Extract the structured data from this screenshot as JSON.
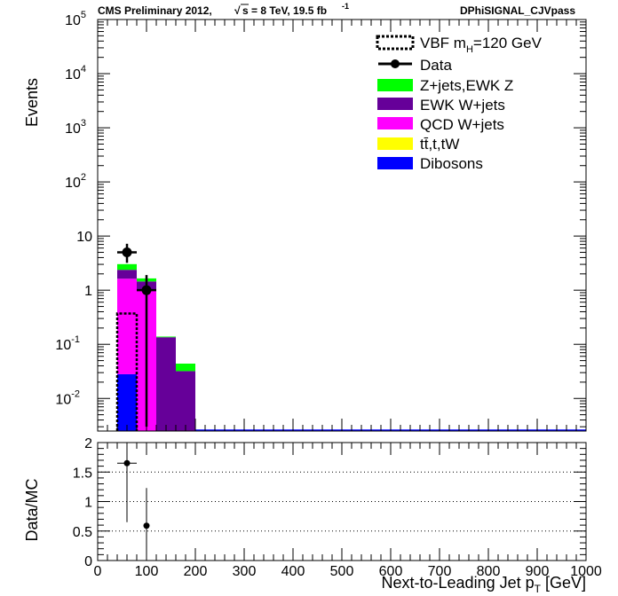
{
  "header": {
    "left_prefix": "CMS Preliminary 2012,",
    "sqrt_symbol": "√",
    "energy": "s = 8 TeV, 19.5 fb",
    "lumi_exp": "-1",
    "right": "DPhiSIGNAL_CJVpass"
  },
  "colors": {
    "zjets": "#00ff00",
    "ewkw": "#660099",
    "qcdw": "#ff00ff",
    "top": "#ffff00",
    "dibosons": "#0000ff",
    "grid": "#000000"
  },
  "chart_data": [
    {
      "type": "bar",
      "stacked": true,
      "log_y": true,
      "xlabel_main": "Next-to-Leading Jet p",
      "xlabel_sub": "T",
      "xlabel_unit": " [GeV]",
      "ylabel": "Events",
      "xlim": [
        0,
        1000
      ],
      "ylim": [
        0.0025,
        100000
      ],
      "x_ticks": [
        "0",
        "100",
        "200",
        "300",
        "400",
        "500",
        "600",
        "700",
        "800",
        "900",
        "1000"
      ],
      "y_ticks": [
        {
          "base": "10",
          "exp": "-2",
          "value": 0.01
        },
        {
          "base": "10",
          "exp": "-1",
          "value": 0.1
        },
        {
          "base": "1",
          "exp": "",
          "value": 1
        },
        {
          "base": "10",
          "exp": "",
          "value": 10
        },
        {
          "base": "10",
          "exp": "2",
          "value": 100
        },
        {
          "base": "10",
          "exp": "3",
          "value": 1000
        },
        {
          "base": "10",
          "exp": "4",
          "value": 10000
        },
        {
          "base": "10",
          "exp": "5",
          "value": 100000
        }
      ],
      "bins": [
        {
          "x0": 40,
          "x1": 80
        },
        {
          "x0": 80,
          "x1": 120
        },
        {
          "x0": 120,
          "x1": 160
        },
        {
          "x0": 160,
          "x1": 200
        }
      ],
      "series": [
        {
          "key": "dibosons",
          "name": "Dibosons",
          "values": [
            0.028,
            0,
            0,
            0
          ]
        },
        {
          "key": "top",
          "name": "tt̄,t,tW",
          "values": [
            0,
            0,
            0,
            0
          ]
        },
        {
          "key": "qcdw",
          "name": "QCD W+jets",
          "values": [
            1.6,
            1.0,
            0,
            0
          ]
        },
        {
          "key": "ewkw",
          "name": "EWK W+jets",
          "values": [
            0.75,
            0.45,
            0.135,
            0.032
          ]
        },
        {
          "key": "zjets",
          "name": "Z+jets,EWK Z",
          "values": [
            0.65,
            0.2,
            0.004,
            0.012
          ]
        }
      ],
      "signal": {
        "name": "VBF m",
        "name_sub": "H",
        "name_rest": "=120 GeV",
        "values": [
          0.37,
          0,
          0,
          0
        ]
      },
      "data": {
        "name": "Data",
        "points": [
          {
            "x": 60,
            "y": 5,
            "ylo": 3.2,
            "yhi": 7.2,
            "xerr": 20
          },
          {
            "x": 100,
            "y": 1,
            "ylo": 0.003,
            "yhi": 1.9,
            "xerr": 20
          }
        ]
      },
      "legend_position": "top-right"
    },
    {
      "type": "scatter",
      "ylabel": "Data/MC",
      "xlim": [
        0,
        1000
      ],
      "ylim": [
        0,
        2
      ],
      "x_ticks": [
        "0",
        "100",
        "200",
        "300",
        "400",
        "500",
        "600",
        "700",
        "800",
        "900",
        "1000"
      ],
      "y_ticks": [
        "0",
        "0.5",
        "1",
        "1.5",
        "2"
      ],
      "grid_lines": [
        0.5,
        1,
        1.5
      ],
      "points": [
        {
          "x": 60,
          "y": 1.65,
          "ylo": 0.65,
          "yhi": 2.0,
          "xerr": 20
        },
        {
          "x": 100,
          "y": 0.59,
          "ylo": 0.0,
          "yhi": 1.23
        }
      ]
    }
  ]
}
